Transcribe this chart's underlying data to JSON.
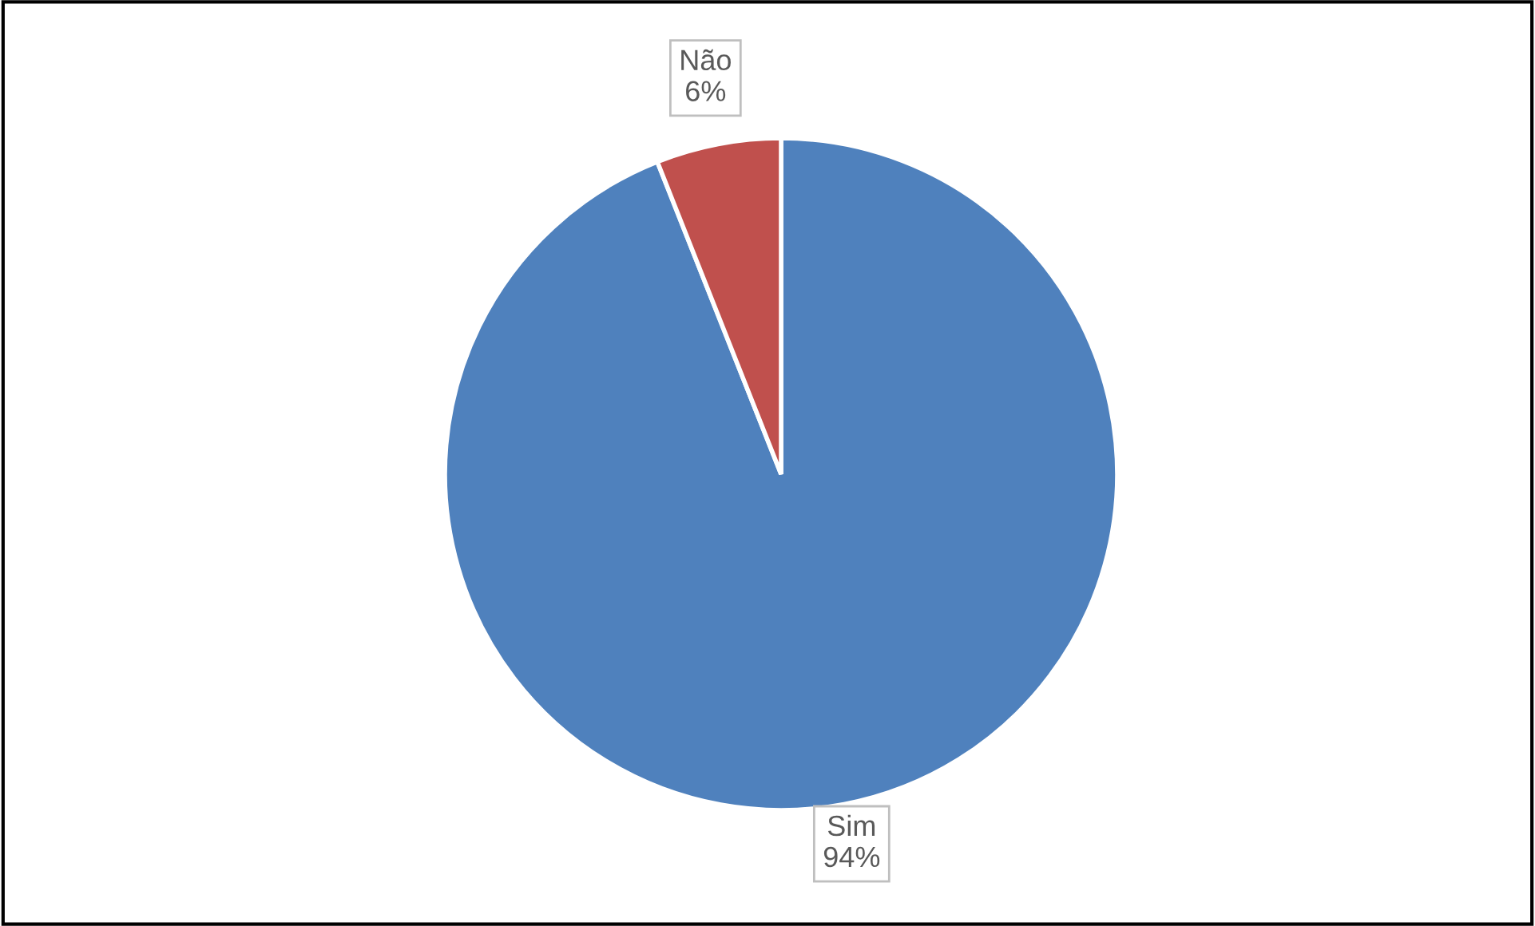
{
  "chart_data": {
    "type": "pie",
    "categories": [
      "Sim",
      "Não"
    ],
    "values": [
      94,
      6
    ],
    "colors": [
      "#4f81bd",
      "#c0504d"
    ],
    "value_labels": [
      "94%",
      "6%"
    ],
    "legend": false
  }
}
